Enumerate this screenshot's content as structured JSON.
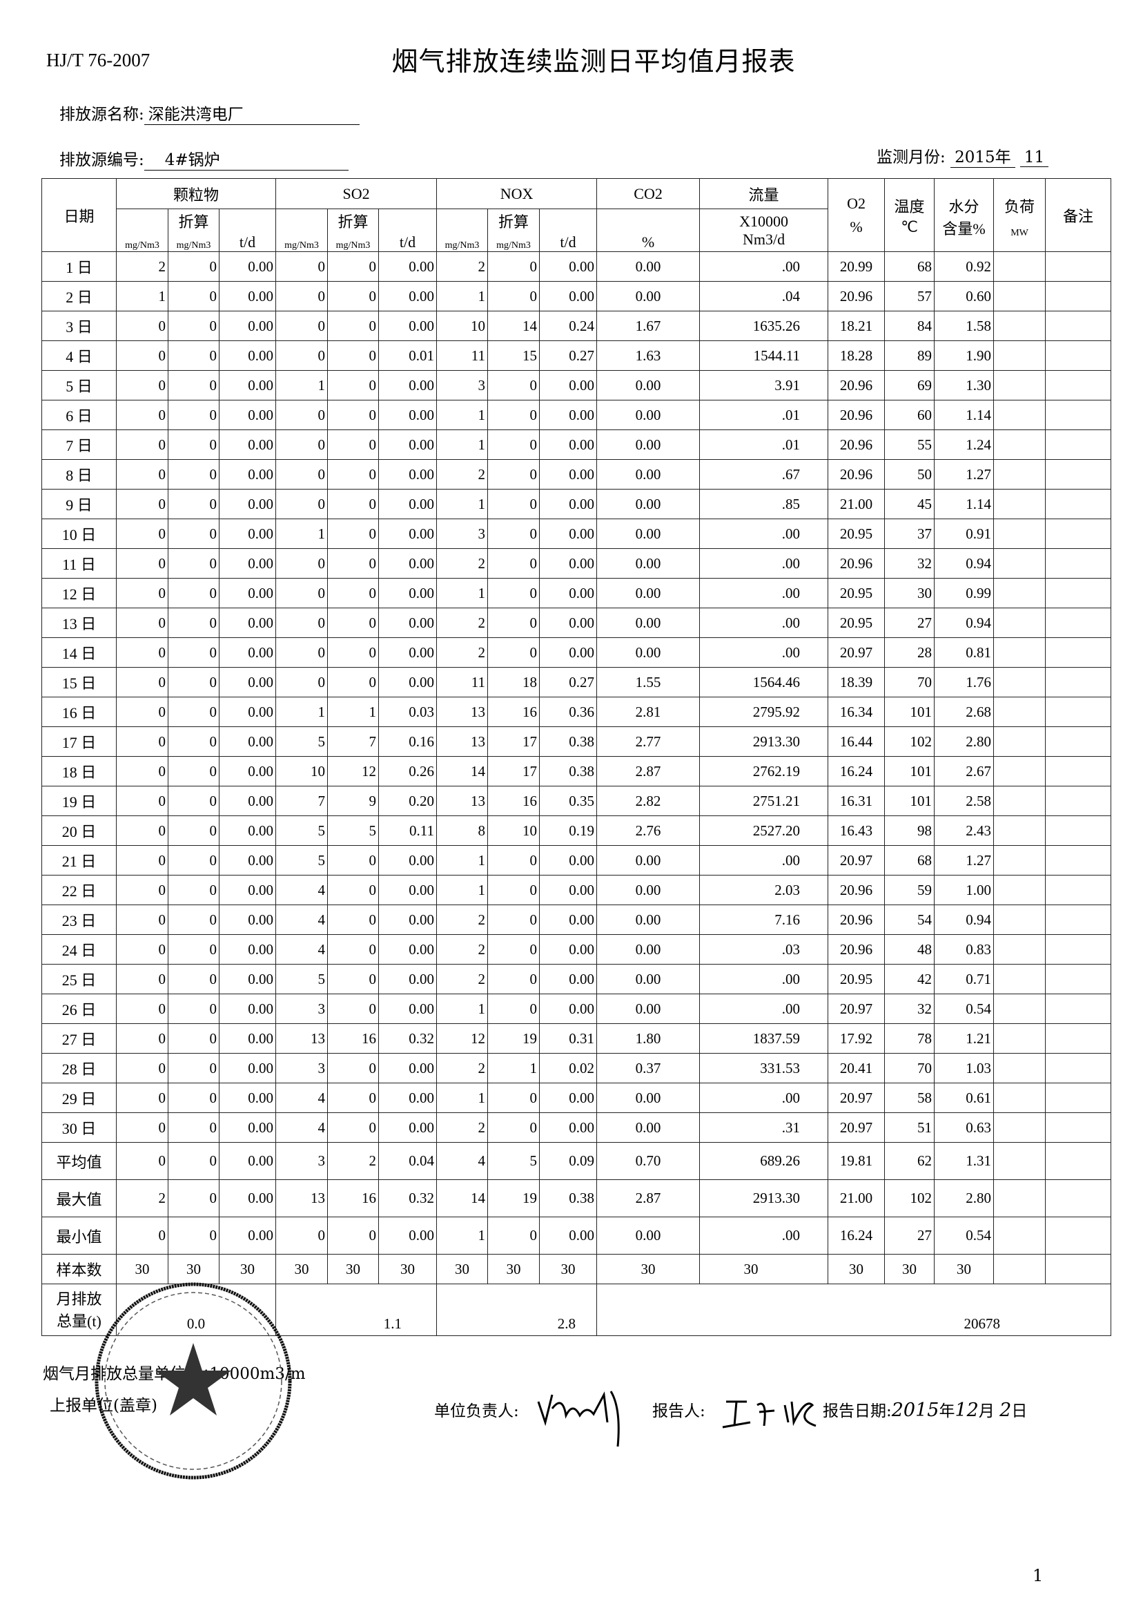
{
  "header": {
    "standard": "HJ/T 76-2007",
    "title": "烟气排放连续监测日平均值月报表",
    "source_name_label": "排放源名称:",
    "source_name": "深能洪湾电厂",
    "source_id_label": "排放源编号:",
    "source_id": "4#锅炉",
    "month_label": "监测月份:",
    "year": "2015年",
    "month": "11"
  },
  "table": {
    "groups": {
      "date": "日期",
      "particulate": "颗粒物",
      "so2": "SO2",
      "nox": "NOX",
      "co2": "CO2",
      "flow": "流量",
      "o2": "O2",
      "temp": "温度",
      "moisture": "水分",
      "load": "负荷",
      "remark": "备注"
    },
    "sub": {
      "converted": "折算",
      "mg": "mg/Nm3",
      "td": "t/d",
      "pct": "%",
      "flow_unit_1": "X10000",
      "flow_unit_2": "Nm3/d",
      "celsius": "℃",
      "moisture_unit": "含量%",
      "mw": "MW"
    },
    "rows": [
      [
        "1 日",
        "2",
        "0",
        "0.00",
        "0",
        "0",
        "0.00",
        "2",
        "0",
        "0.00",
        "0.00",
        ".00",
        "20.99",
        "68",
        "0.92"
      ],
      [
        "2 日",
        "1",
        "0",
        "0.00",
        "0",
        "0",
        "0.00",
        "1",
        "0",
        "0.00",
        "0.00",
        ".04",
        "20.96",
        "57",
        "0.60"
      ],
      [
        "3 日",
        "0",
        "0",
        "0.00",
        "0",
        "0",
        "0.00",
        "10",
        "14",
        "0.24",
        "1.67",
        "1635.26",
        "18.21",
        "84",
        "1.58"
      ],
      [
        "4 日",
        "0",
        "0",
        "0.00",
        "0",
        "0",
        "0.01",
        "11",
        "15",
        "0.27",
        "1.63",
        "1544.11",
        "18.28",
        "89",
        "1.90"
      ],
      [
        "5 日",
        "0",
        "0",
        "0.00",
        "1",
        "0",
        "0.00",
        "3",
        "0",
        "0.00",
        "0.00",
        "3.91",
        "20.96",
        "69",
        "1.30"
      ],
      [
        "6 日",
        "0",
        "0",
        "0.00",
        "0",
        "0",
        "0.00",
        "1",
        "0",
        "0.00",
        "0.00",
        ".01",
        "20.96",
        "60",
        "1.14"
      ],
      [
        "7 日",
        "0",
        "0",
        "0.00",
        "0",
        "0",
        "0.00",
        "1",
        "0",
        "0.00",
        "0.00",
        ".01",
        "20.96",
        "55",
        "1.24"
      ],
      [
        "8 日",
        "0",
        "0",
        "0.00",
        "0",
        "0",
        "0.00",
        "2",
        "0",
        "0.00",
        "0.00",
        ".67",
        "20.96",
        "50",
        "1.27"
      ],
      [
        "9 日",
        "0",
        "0",
        "0.00",
        "0",
        "0",
        "0.00",
        "1",
        "0",
        "0.00",
        "0.00",
        ".85",
        "21.00",
        "45",
        "1.14"
      ],
      [
        "10 日",
        "0",
        "0",
        "0.00",
        "1",
        "0",
        "0.00",
        "3",
        "0",
        "0.00",
        "0.00",
        ".00",
        "20.95",
        "37",
        "0.91"
      ],
      [
        "11 日",
        "0",
        "0",
        "0.00",
        "0",
        "0",
        "0.00",
        "2",
        "0",
        "0.00",
        "0.00",
        ".00",
        "20.96",
        "32",
        "0.94"
      ],
      [
        "12 日",
        "0",
        "0",
        "0.00",
        "0",
        "0",
        "0.00",
        "1",
        "0",
        "0.00",
        "0.00",
        ".00",
        "20.95",
        "30",
        "0.99"
      ],
      [
        "13 日",
        "0",
        "0",
        "0.00",
        "0",
        "0",
        "0.00",
        "2",
        "0",
        "0.00",
        "0.00",
        ".00",
        "20.95",
        "27",
        "0.94"
      ],
      [
        "14 日",
        "0",
        "0",
        "0.00",
        "0",
        "0",
        "0.00",
        "2",
        "0",
        "0.00",
        "0.00",
        ".00",
        "20.97",
        "28",
        "0.81"
      ],
      [
        "15 日",
        "0",
        "0",
        "0.00",
        "0",
        "0",
        "0.00",
        "11",
        "18",
        "0.27",
        "1.55",
        "1564.46",
        "18.39",
        "70",
        "1.76"
      ],
      [
        "16 日",
        "0",
        "0",
        "0.00",
        "1",
        "1",
        "0.03",
        "13",
        "16",
        "0.36",
        "2.81",
        "2795.92",
        "16.34",
        "101",
        "2.68"
      ],
      [
        "17 日",
        "0",
        "0",
        "0.00",
        "5",
        "7",
        "0.16",
        "13",
        "17",
        "0.38",
        "2.77",
        "2913.30",
        "16.44",
        "102",
        "2.80"
      ],
      [
        "18 日",
        "0",
        "0",
        "0.00",
        "10",
        "12",
        "0.26",
        "14",
        "17",
        "0.38",
        "2.87",
        "2762.19",
        "16.24",
        "101",
        "2.67"
      ],
      [
        "19 日",
        "0",
        "0",
        "0.00",
        "7",
        "9",
        "0.20",
        "13",
        "16",
        "0.35",
        "2.82",
        "2751.21",
        "16.31",
        "101",
        "2.58"
      ],
      [
        "20 日",
        "0",
        "0",
        "0.00",
        "5",
        "5",
        "0.11",
        "8",
        "10",
        "0.19",
        "2.76",
        "2527.20",
        "16.43",
        "98",
        "2.43"
      ],
      [
        "21 日",
        "0",
        "0",
        "0.00",
        "5",
        "0",
        "0.00",
        "1",
        "0",
        "0.00",
        "0.00",
        ".00",
        "20.97",
        "68",
        "1.27"
      ],
      [
        "22 日",
        "0",
        "0",
        "0.00",
        "4",
        "0",
        "0.00",
        "1",
        "0",
        "0.00",
        "0.00",
        "2.03",
        "20.96",
        "59",
        "1.00"
      ],
      [
        "23 日",
        "0",
        "0",
        "0.00",
        "4",
        "0",
        "0.00",
        "2",
        "0",
        "0.00",
        "0.00",
        "7.16",
        "20.96",
        "54",
        "0.94"
      ],
      [
        "24 日",
        "0",
        "0",
        "0.00",
        "4",
        "0",
        "0.00",
        "2",
        "0",
        "0.00",
        "0.00",
        ".03",
        "20.96",
        "48",
        "0.83"
      ],
      [
        "25 日",
        "0",
        "0",
        "0.00",
        "5",
        "0",
        "0.00",
        "2",
        "0",
        "0.00",
        "0.00",
        ".00",
        "20.95",
        "42",
        "0.71"
      ],
      [
        "26 日",
        "0",
        "0",
        "0.00",
        "3",
        "0",
        "0.00",
        "1",
        "0",
        "0.00",
        "0.00",
        ".00",
        "20.97",
        "32",
        "0.54"
      ],
      [
        "27 日",
        "0",
        "0",
        "0.00",
        "13",
        "16",
        "0.32",
        "12",
        "19",
        "0.31",
        "1.80",
        "1837.59",
        "17.92",
        "78",
        "1.21"
      ],
      [
        "28 日",
        "0",
        "0",
        "0.00",
        "3",
        "0",
        "0.00",
        "2",
        "1",
        "0.02",
        "0.37",
        "331.53",
        "20.41",
        "70",
        "1.03"
      ],
      [
        "29 日",
        "0",
        "0",
        "0.00",
        "4",
        "0",
        "0.00",
        "1",
        "0",
        "0.00",
        "0.00",
        ".00",
        "20.97",
        "58",
        "0.61"
      ],
      [
        "30 日",
        "0",
        "0",
        "0.00",
        "4",
        "0",
        "0.00",
        "2",
        "0",
        "0.00",
        "0.00",
        ".31",
        "20.97",
        "51",
        "0.63"
      ]
    ],
    "stats": [
      [
        "平均值",
        "0",
        "0",
        "0.00",
        "3",
        "2",
        "0.04",
        "4",
        "5",
        "0.09",
        "0.70",
        "689.26",
        "19.81",
        "62",
        "1.31"
      ],
      [
        "最大值",
        "2",
        "0",
        "0.00",
        "13",
        "16",
        "0.32",
        "14",
        "19",
        "0.38",
        "2.87",
        "2913.30",
        "21.00",
        "102",
        "2.80"
      ],
      [
        "最小值",
        "0",
        "0",
        "0.00",
        "0",
        "0",
        "0.00",
        "1",
        "0",
        "0.00",
        "0.00",
        ".00",
        "16.24",
        "27",
        "0.54"
      ]
    ],
    "samples": [
      "样本数",
      "30",
      "30",
      "30",
      "30",
      "30",
      "30",
      "30",
      "30",
      "30",
      "30",
      "30",
      "30",
      "30",
      "30"
    ],
    "total": {
      "label_1": "月排放",
      "label_2": "总量(t)",
      "particulate": "0.0",
      "so2": "1.1",
      "nox": "2.8",
      "flow": "20678"
    }
  },
  "footer": {
    "flow_unit_note": "烟气月排放总量单位: ×10000m3/m",
    "reporting_unit": "上报单位(盖章)",
    "responsible_label": "单位负责人:",
    "reporter_label": "报告人:",
    "report_date_label": "报告日期:",
    "report_year": "2015",
    "year_char": "年",
    "report_month": "12",
    "month_char": "月",
    "report_day": "2",
    "day_char": "日",
    "stamp_text": "珠海深能洪湾电力有限公司",
    "page_number": "1"
  }
}
